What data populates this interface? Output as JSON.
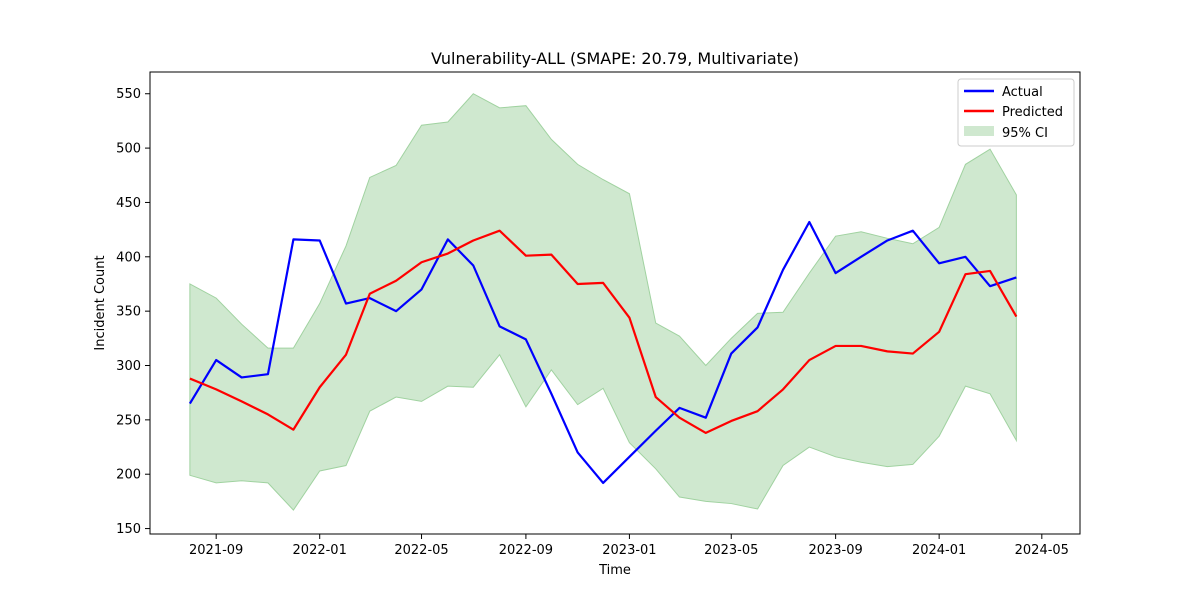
{
  "chart_data": {
    "type": "line",
    "title": "Vulnerability-ALL (SMAPE: 20.79, Multivariate)",
    "xlabel": "Time",
    "ylabel": "Incident Count",
    "ylim": [
      145,
      570
    ],
    "xlim": [
      "2021-06-15",
      "2024-06-15"
    ],
    "yticks": [
      150,
      200,
      250,
      300,
      350,
      400,
      450,
      500,
      550
    ],
    "xticks": [
      "2021-09",
      "2022-01",
      "2022-05",
      "2022-09",
      "2023-01",
      "2023-05",
      "2023-09",
      "2024-01",
      "2024-05"
    ],
    "grid": false,
    "legend_position": "top-right",
    "x": [
      "2021-08",
      "2021-09",
      "2021-10",
      "2021-11",
      "2021-12",
      "2022-01",
      "2022-02",
      "2022-03",
      "2022-04",
      "2022-05",
      "2022-06",
      "2022-07",
      "2022-08",
      "2022-09",
      "2022-10",
      "2022-11",
      "2022-12",
      "2023-01",
      "2023-02",
      "2023-03",
      "2023-04",
      "2023-05",
      "2023-06",
      "2023-07",
      "2023-08",
      "2023-09",
      "2023-10",
      "2023-11",
      "2023-12",
      "2024-01",
      "2024-02",
      "2024-03",
      "2024-04"
    ],
    "series": [
      {
        "name": "Actual",
        "color": "#0000ff",
        "values": [
          265,
          305,
          289,
          292,
          416,
          415,
          357,
          362,
          350,
          370,
          416,
          392,
          336,
          324,
          274,
          220,
          192,
          216,
          240,
          261,
          252,
          311,
          335,
          388,
          432,
          385,
          400,
          415,
          424,
          394,
          400,
          373,
          381
        ]
      },
      {
        "name": "Predicted",
        "color": "#ff0000",
        "values": [
          288,
          278,
          267,
          255,
          241,
          280,
          310,
          366,
          378,
          395,
          403,
          415,
          424,
          401,
          402,
          375,
          376,
          344,
          271,
          252,
          238,
          249,
          258,
          278,
          305,
          318,
          318,
          313,
          311,
          331,
          384,
          387,
          345
        ]
      }
    ],
    "band": {
      "name": "95% CI",
      "color": "#a0d2a0",
      "lower": [
        199,
        192,
        194,
        192,
        167,
        203,
        208,
        258,
        271,
        267,
        281,
        280,
        310,
        262,
        296,
        264,
        279,
        229,
        205,
        179,
        175,
        173,
        168,
        208,
        225,
        216,
        211,
        207,
        209,
        235,
        281,
        274,
        231
      ],
      "upper": [
        375,
        362,
        338,
        316,
        316,
        357,
        410,
        473,
        484,
        521,
        524,
        550,
        537,
        539,
        508,
        485,
        471,
        458,
        339,
        327,
        300,
        325,
        348,
        349,
        385,
        419,
        423,
        417,
        412,
        427,
        485,
        499,
        457
      ]
    }
  }
}
